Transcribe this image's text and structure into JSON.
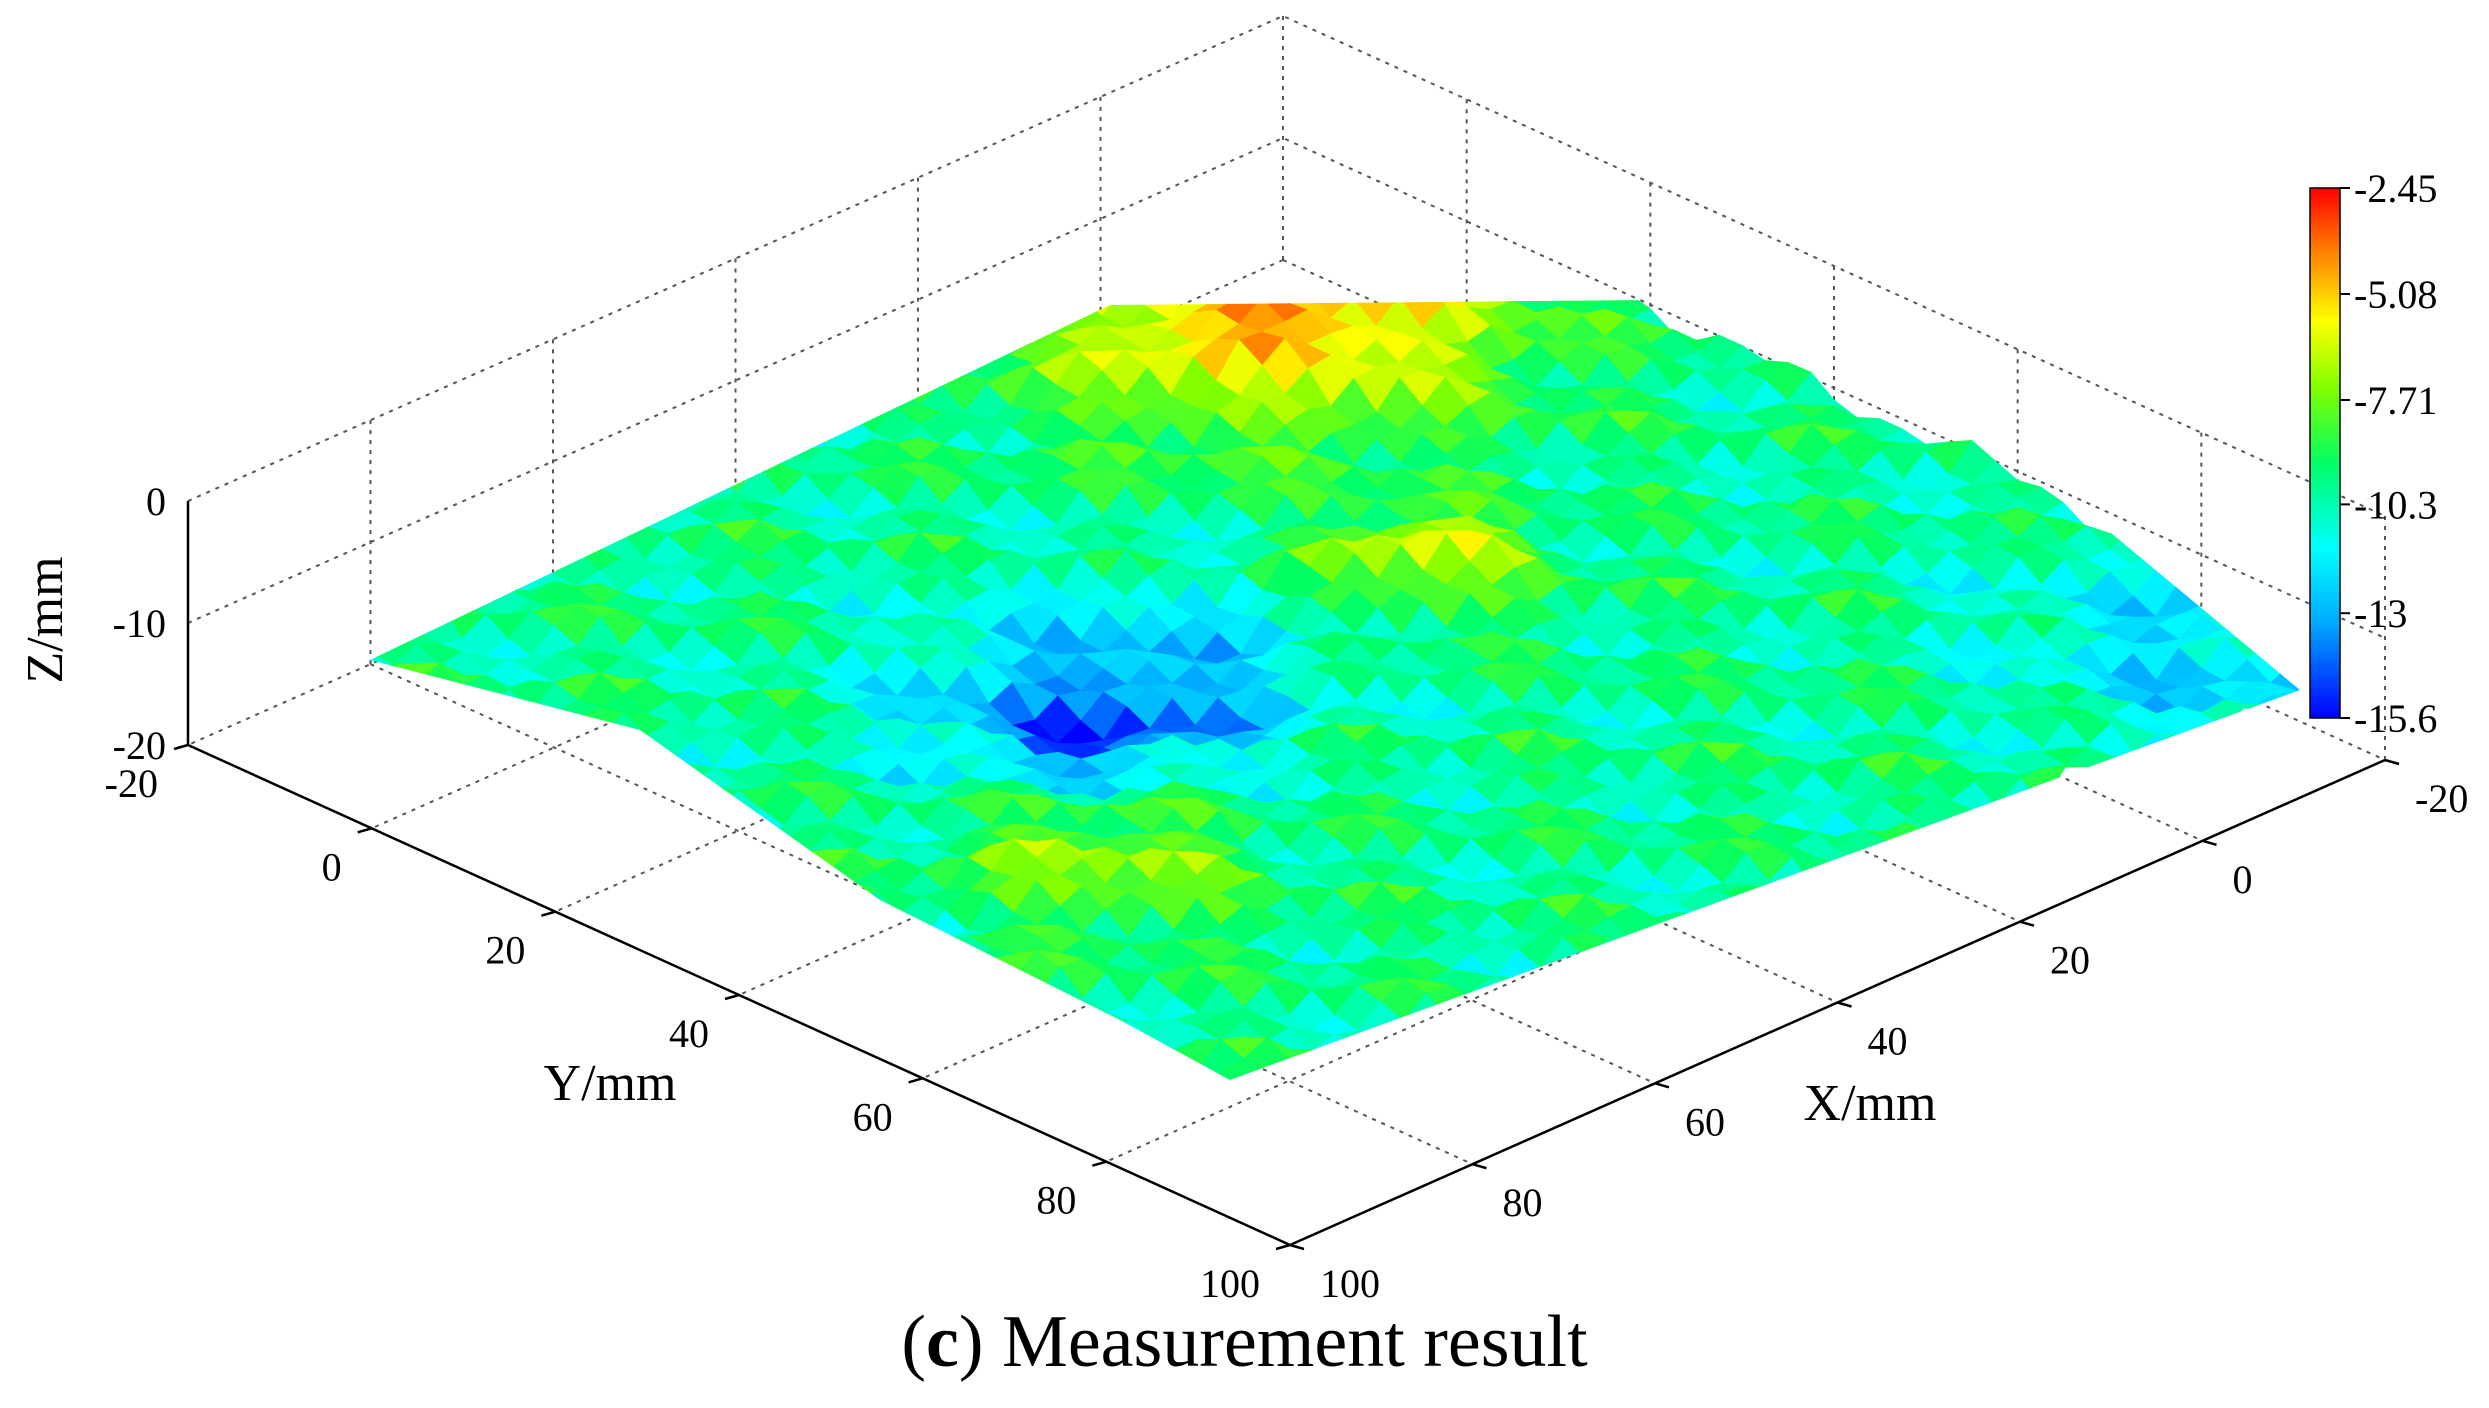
{
  "chart_data": {
    "type": "surface",
    "x_axis": {
      "label": "X/mm",
      "ticks": [
        "-20",
        "0",
        "20",
        "40",
        "60",
        "80",
        "100"
      ],
      "range": [
        -20,
        100
      ]
    },
    "y_axis": {
      "label": "Y/mm",
      "ticks": [
        "-20",
        "0",
        "20",
        "40",
        "60",
        "80",
        "100"
      ],
      "range": [
        -20,
        100
      ]
    },
    "z_axis": {
      "label": "Z/mm",
      "ticks": [
        "0",
        "-10",
        "-20"
      ],
      "range": [
        -20,
        0
      ]
    },
    "colorbar": {
      "ticks": [
        "-2.45",
        "-5.08",
        "-7.71",
        "-10.3",
        "-13",
        "-15.6"
      ],
      "range": [
        -15.6,
        -2.45
      ],
      "colormap": [
        "#0000ff",
        "#00aaff",
        "#00ffff",
        "#00ff66",
        "#7fff00",
        "#ffff00",
        "#ff8000",
        "#ff0000"
      ]
    },
    "grid": true,
    "surface_color_min": "#0000ff",
    "surface_color_max": "#ff0000"
  },
  "caption": {
    "open": "(",
    "letter": "c",
    "close": ")",
    "text": " Measurement result"
  }
}
